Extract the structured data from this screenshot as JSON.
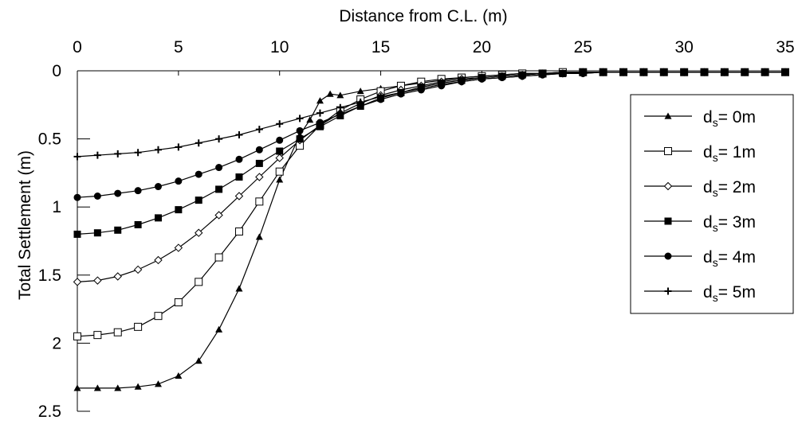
{
  "chart_data": {
    "type": "line",
    "xlabel": "Distance from C.L. (m)",
    "ylabel": "Total Settlement (m)",
    "xlim": [
      0,
      35
    ],
    "ylim": [
      0,
      2.5
    ],
    "y_inverted": true,
    "x_axis_position": "top",
    "x_ticks": [
      0,
      5,
      10,
      15,
      20,
      25,
      30,
      35
    ],
    "y_ticks": [
      0,
      0.5,
      1,
      1.5,
      2,
      2.5
    ],
    "grid": false,
    "legend_position": "right",
    "series": [
      {
        "name_main": "d",
        "name_sub": "s",
        "name_rest": "= 0m",
        "marker": "triangle",
        "x": [
          0,
          1,
          2,
          3,
          4,
          5,
          6,
          7,
          8,
          9,
          10,
          11,
          11.5,
          12,
          12.5,
          13,
          14,
          15,
          16,
          17,
          18,
          19,
          20,
          21,
          22,
          23,
          24,
          25,
          26,
          27,
          28,
          29,
          30,
          31,
          32,
          33,
          34,
          35
        ],
        "y": [
          2.33,
          2.33,
          2.33,
          2.32,
          2.3,
          2.24,
          2.13,
          1.9,
          1.6,
          1.22,
          0.8,
          0.47,
          0.36,
          0.22,
          0.17,
          0.18,
          0.15,
          0.13,
          0.11,
          0.09,
          0.07,
          0.05,
          0.04,
          0.03,
          0.02,
          0.02,
          0.01,
          0.01,
          0.01,
          0.01,
          0.01,
          0.01,
          0.01,
          0.01,
          0.01,
          0.01,
          0.01,
          0.01
        ]
      },
      {
        "name_main": "d",
        "name_sub": "s",
        "name_rest": "= 1m",
        "marker": "open-square",
        "x": [
          0,
          1,
          2,
          3,
          4,
          5,
          6,
          7,
          8,
          9,
          10,
          11,
          12,
          13,
          14,
          15,
          16,
          17,
          18,
          19,
          20,
          21,
          22,
          23,
          24,
          25,
          26,
          27,
          28,
          29,
          30,
          31,
          32,
          33,
          34,
          35
        ],
        "y": [
          1.95,
          1.94,
          1.92,
          1.88,
          1.8,
          1.7,
          1.55,
          1.37,
          1.18,
          0.96,
          0.74,
          0.55,
          0.4,
          0.29,
          0.21,
          0.15,
          0.11,
          0.08,
          0.06,
          0.05,
          0.04,
          0.03,
          0.02,
          0.02,
          0.01,
          0.01,
          0.01,
          0.01,
          0.01,
          0.01,
          0.01,
          0.01,
          0.01,
          0.01,
          0.01,
          0.01
        ]
      },
      {
        "name_main": "d",
        "name_sub": "s",
        "name_rest": "= 2m",
        "marker": "open-diamond",
        "x": [
          0,
          1,
          2,
          3,
          4,
          5,
          6,
          7,
          8,
          9,
          10,
          11,
          12,
          13,
          14,
          15,
          16,
          17,
          18,
          19,
          20,
          21,
          22,
          23,
          24,
          25,
          26,
          27,
          28,
          29,
          30,
          31,
          32,
          33,
          34,
          35
        ],
        "y": [
          1.55,
          1.54,
          1.51,
          1.46,
          1.39,
          1.3,
          1.19,
          1.06,
          0.92,
          0.78,
          0.64,
          0.51,
          0.4,
          0.31,
          0.24,
          0.18,
          0.14,
          0.11,
          0.08,
          0.06,
          0.05,
          0.04,
          0.03,
          0.02,
          0.02,
          0.01,
          0.01,
          0.01,
          0.01,
          0.01,
          0.01,
          0.01,
          0.01,
          0.01,
          0.01,
          0.01
        ]
      },
      {
        "name_main": "d",
        "name_sub": "s",
        "name_rest": "= 3m",
        "marker": "filled-square",
        "x": [
          0,
          1,
          2,
          3,
          4,
          5,
          6,
          7,
          8,
          9,
          10,
          11,
          12,
          13,
          14,
          15,
          16,
          17,
          18,
          19,
          20,
          21,
          22,
          23,
          24,
          25,
          26,
          27,
          28,
          29,
          30,
          31,
          32,
          33,
          34,
          35
        ],
        "y": [
          1.2,
          1.19,
          1.17,
          1.13,
          1.08,
          1.02,
          0.95,
          0.87,
          0.78,
          0.68,
          0.59,
          0.5,
          0.41,
          0.33,
          0.26,
          0.2,
          0.16,
          0.12,
          0.09,
          0.07,
          0.05,
          0.04,
          0.03,
          0.02,
          0.02,
          0.01,
          0.01,
          0.01,
          0.01,
          0.01,
          0.01,
          0.01,
          0.01,
          0.01,
          0.01,
          0.01
        ]
      },
      {
        "name_main": "d",
        "name_sub": "s",
        "name_rest": "= 4m",
        "marker": "filled-circle",
        "x": [
          0,
          1,
          2,
          3,
          4,
          5,
          6,
          7,
          8,
          9,
          10,
          11,
          12,
          13,
          14,
          15,
          16,
          17,
          18,
          19,
          20,
          21,
          22,
          23,
          24,
          25,
          26,
          27,
          28,
          29,
          30,
          31,
          32,
          33,
          34,
          35
        ],
        "y": [
          0.93,
          0.92,
          0.9,
          0.88,
          0.85,
          0.81,
          0.76,
          0.71,
          0.65,
          0.58,
          0.51,
          0.44,
          0.38,
          0.32,
          0.26,
          0.21,
          0.17,
          0.14,
          0.11,
          0.08,
          0.06,
          0.05,
          0.04,
          0.03,
          0.02,
          0.02,
          0.01,
          0.01,
          0.01,
          0.01,
          0.01,
          0.01,
          0.01,
          0.01,
          0.01,
          0.01
        ]
      },
      {
        "name_main": "d",
        "name_sub": "s",
        "name_rest": "= 5m",
        "marker": "plus",
        "x": [
          0,
          1,
          2,
          3,
          4,
          5,
          6,
          7,
          8,
          9,
          10,
          11,
          12,
          13,
          14,
          15,
          16,
          17,
          18,
          19,
          20,
          21,
          22,
          23,
          24,
          25,
          26,
          27,
          28,
          29,
          30,
          31,
          32,
          33,
          34,
          35
        ],
        "y": [
          0.63,
          0.62,
          0.61,
          0.6,
          0.58,
          0.56,
          0.53,
          0.5,
          0.47,
          0.43,
          0.39,
          0.35,
          0.31,
          0.27,
          0.23,
          0.19,
          0.16,
          0.13,
          0.1,
          0.08,
          0.06,
          0.05,
          0.04,
          0.03,
          0.02,
          0.02,
          0.01,
          0.01,
          0.01,
          0.01,
          0.01,
          0.01,
          0.01,
          0.01,
          0.01,
          0.01
        ]
      }
    ]
  }
}
